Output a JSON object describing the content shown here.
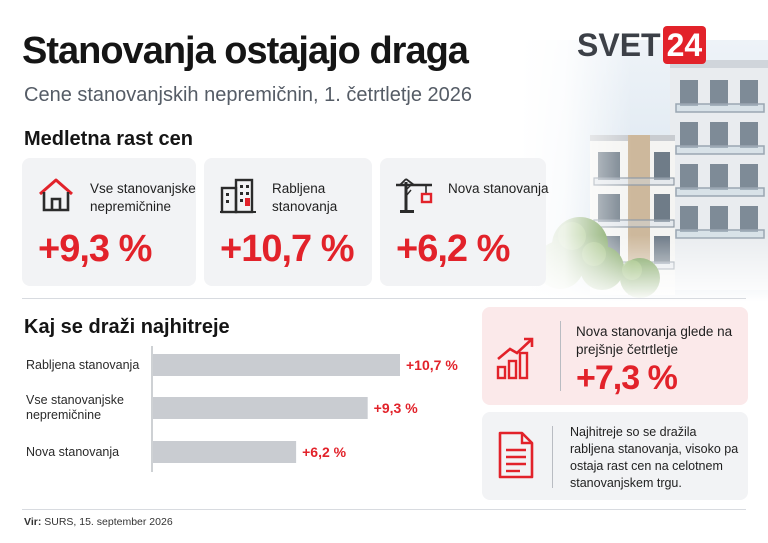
{
  "header": {
    "title": "Stanovanja ostajajo draga",
    "subtitle": "Cene stanovanjskih nepremičnin, 1. četrtletje 2026"
  },
  "logo": {
    "part_a": "SVET",
    "part_b": "24",
    "accent_color": "#e2222a"
  },
  "section1": {
    "title": "Medletna rast cen",
    "cards": [
      {
        "icon": "house-icon",
        "label": "Vse stanovanjske nepremičnine",
        "value": "+9,3 %"
      },
      {
        "icon": "apartment-building-icon",
        "label": "Rabljena stanovanja",
        "value": "+10,7 %"
      },
      {
        "icon": "construction-crane-icon",
        "label": "Nova stanovanja",
        "value": "+6,2 %"
      }
    ]
  },
  "section2": {
    "title": "Kaj se draži najhitreje"
  },
  "chart_data": {
    "type": "bar",
    "orientation": "horizontal",
    "categories": [
      "Rabljena stanovanja",
      "Vse stanovanjske nepremičnine",
      "Nova stanovanja"
    ],
    "values": [
      10.7,
      9.3,
      6.2
    ],
    "value_labels": [
      "+10,7 %",
      "+9,3 %",
      "+6,2 %"
    ],
    "grid": false,
    "bar_color": "#c9ccd1",
    "label_color": "#e2222a"
  },
  "panel_red": {
    "icon": "growth-chart-icon",
    "text": "Nova stanovanja glede na prejšnje četrtletje",
    "value": "+7,3 %"
  },
  "panel_grey": {
    "icon": "document-icon",
    "text": "Najhitreje so se dražila rabljena stanovanja, visoko pa ostaja rast cen na celotnem stanovanjskem trgu."
  },
  "footer": {
    "source_label": "Vir:",
    "source_text": "SURS, 15. september 2026"
  }
}
